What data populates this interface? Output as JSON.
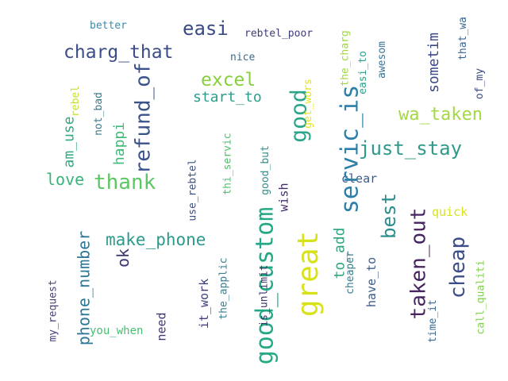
{
  "words": {
    "better": {
      "text": "better",
      "color": "#3b8bab"
    },
    "easi": {
      "text": "easi",
      "color": "#3a4a86"
    },
    "rebtel_poor": {
      "text": "rebtel_poor",
      "color": "#3c3c7a"
    },
    "charg_that": {
      "text": "charg_that",
      "color": "#3b4d88"
    },
    "nice": {
      "text": "nice",
      "color": "#3a6c8e"
    },
    "excel": {
      "text": "excel",
      "color": "#86cf3c"
    },
    "start_to": {
      "text": "start_to",
      "color": "#2a9d8f"
    },
    "wa_taken": {
      "text": "wa_taken",
      "color": "#a3d945"
    },
    "just_stay": {
      "text": "just_stay",
      "color": "#2f9a8a"
    },
    "love": {
      "text": "love",
      "color": "#37b47a"
    },
    "thank": {
      "text": "thank",
      "color": "#5cc863"
    },
    "clear": {
      "text": "clear",
      "color": "#3b5a8c"
    },
    "quick": {
      "text": "quick",
      "color": "#d8e21a"
    },
    "make_phone": {
      "text": "make_phone",
      "color": "#2b9a8c"
    },
    "you_when": {
      "text": "you_when",
      "color": "#44bf70"
    },
    "refund_of": {
      "text": "refund_of",
      "color": "#3b528b"
    },
    "servic_is": {
      "text": "servic_is",
      "color": "#2c7fa8"
    },
    "good": {
      "text": "good",
      "color": "#2ba58a"
    },
    "good_custom": {
      "text": "good_custom",
      "color": "#22a884"
    },
    "great": {
      "text": "great",
      "color": "#d7e219"
    },
    "cheap": {
      "text": "cheap",
      "color": "#3b4e89"
    },
    "taken_out": {
      "text": "taken_out",
      "color": "#46255f"
    },
    "best": {
      "text": "best",
      "color": "#2a8c8b"
    },
    "phone_number": {
      "text": "phone_number",
      "color": "#2d7896"
    },
    "happi": {
      "text": "happi",
      "color": "#42b97a"
    },
    "am_use": {
      "text": "am_use",
      "color": "#35a97e"
    },
    "ok": {
      "text": "ok",
      "color": "#3c3874"
    },
    "rebel": {
      "text": "rebel",
      "color": "#c8df2a"
    },
    "not_bad": {
      "text": "not_bad",
      "color": "#3a7a8e"
    },
    "use_rebtel": {
      "text": "use_rebtel",
      "color": "#3b4f88"
    },
    "thi_servic": {
      "text": "thi_servic",
      "color": "#4cc26c"
    },
    "good_but": {
      "text": "good_but",
      "color": "#2e8e8d"
    },
    "wish": {
      "text": "wish",
      "color": "#432d6b"
    },
    "get_wors": {
      "text": "get_wors",
      "color": "#e5e419"
    },
    "the_charg": {
      "text": "the_charg",
      "color": "#9dd93b"
    },
    "easi_to": {
      "text": "easi_to",
      "color": "#2fa089"
    },
    "awesom": {
      "text": "awesom",
      "color": "#3a7294"
    },
    "sometim": {
      "text": "sometim",
      "color": "#3c4884"
    },
    "that_wa": {
      "text": "that_wa",
      "color": "#3b6690"
    },
    "of_my": {
      "text": "of_my",
      "color": "#3b4a86"
    },
    "to_add": {
      "text": "to_add",
      "color": "#30a482"
    },
    "have_to": {
      "text": "have_to",
      "color": "#3b5c8c"
    },
    "cheaper": {
      "text": "cheaper",
      "color": "#3a7a8d"
    },
    "my_request": {
      "text": "my_request",
      "color": "#4a3f7e"
    },
    "need": {
      "text": "need",
      "color": "#443371"
    },
    "it_work": {
      "text": "it_work",
      "color": "#3e3f7a"
    },
    "the_applic": {
      "text": "the_applic",
      "color": "#3a7e8e"
    },
    "is_unlimit": {
      "text": "is_unlimit",
      "color": "#3d2f70"
    },
    "time_it": {
      "text": "time_it",
      "color": "#3a6a91"
    },
    "call_qualiti": {
      "text": "call_qualiti",
      "color": "#7fd14a"
    }
  }
}
